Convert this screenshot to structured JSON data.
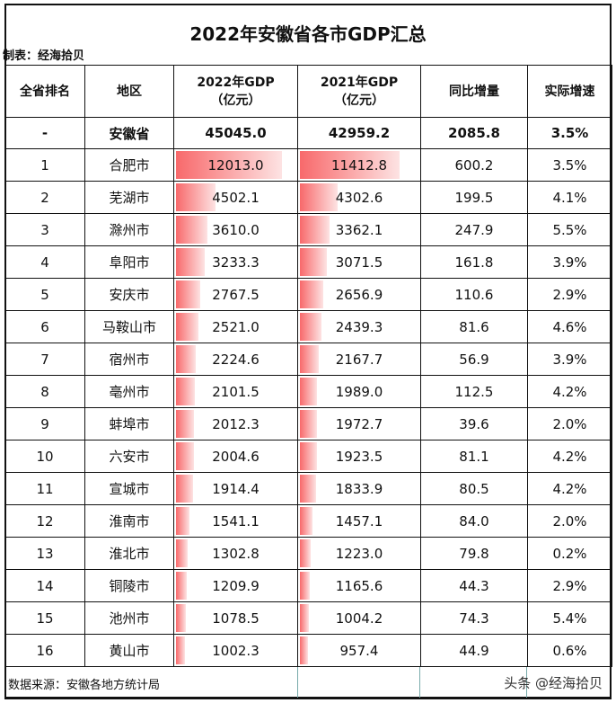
{
  "title": "2022年安徽省各市GDP汇总",
  "maker": "制表：经海拾贝",
  "headers": [
    "全省排名",
    "地区",
    "2022年GDP\n（亿元）",
    "2021年GDP\n（亿元）",
    "同比增量",
    "实际增速"
  ],
  "header_lines": {
    "gdp2022_a": "2022年GDP",
    "gdp2022_b": "（亿元）",
    "gdp2021_a": "2021年GDP",
    "gdp2021_b": "（亿元）"
  },
  "province": {
    "rank": "-",
    "name": "安徽省",
    "gdp2022": "45045.0",
    "gdp2021": "42959.2",
    "increase": "2085.8",
    "growth": "3.5%"
  },
  "rows": [
    {
      "rank": "1",
      "name": "合肥市",
      "gdp2022": "12013.0",
      "gdp2021": "11412.8",
      "increase": "600.2",
      "growth": "3.5%"
    },
    {
      "rank": "2",
      "name": "芜湖市",
      "gdp2022": "4502.1",
      "gdp2021": "4302.6",
      "increase": "199.5",
      "growth": "4.1%"
    },
    {
      "rank": "3",
      "name": "滁州市",
      "gdp2022": "3610.0",
      "gdp2021": "3362.1",
      "increase": "247.9",
      "growth": "5.5%"
    },
    {
      "rank": "4",
      "name": "阜阳市",
      "gdp2022": "3233.3",
      "gdp2021": "3071.5",
      "increase": "161.8",
      "growth": "3.9%"
    },
    {
      "rank": "5",
      "name": "安庆市",
      "gdp2022": "2767.5",
      "gdp2021": "2656.9",
      "increase": "110.6",
      "growth": "2.9%"
    },
    {
      "rank": "6",
      "name": "马鞍山市",
      "gdp2022": "2521.0",
      "gdp2021": "2439.3",
      "increase": "81.6",
      "growth": "4.6%"
    },
    {
      "rank": "7",
      "name": "宿州市",
      "gdp2022": "2224.6",
      "gdp2021": "2167.7",
      "increase": "56.9",
      "growth": "3.9%"
    },
    {
      "rank": "8",
      "name": "亳州市",
      "gdp2022": "2101.5",
      "gdp2021": "1989.0",
      "increase": "112.5",
      "growth": "4.2%"
    },
    {
      "rank": "9",
      "name": "蚌埠市",
      "gdp2022": "2012.3",
      "gdp2021": "1972.7",
      "increase": "39.6",
      "growth": "2.0%"
    },
    {
      "rank": "10",
      "name": "六安市",
      "gdp2022": "2004.6",
      "gdp2021": "1923.5",
      "increase": "81.1",
      "growth": "4.2%"
    },
    {
      "rank": "11",
      "name": "宣城市",
      "gdp2022": "1914.4",
      "gdp2021": "1833.9",
      "increase": "80.5",
      "growth": "4.2%"
    },
    {
      "rank": "12",
      "name": "淮南市",
      "gdp2022": "1541.1",
      "gdp2021": "1457.1",
      "increase": "84.0",
      "growth": "2.0%"
    },
    {
      "rank": "13",
      "name": "淮北市",
      "gdp2022": "1302.8",
      "gdp2021": "1223.0",
      "increase": "79.8",
      "growth": "0.2%"
    },
    {
      "rank": "14",
      "name": "铜陵市",
      "gdp2022": "1209.9",
      "gdp2021": "1165.6",
      "increase": "44.3",
      "growth": "2.9%"
    },
    {
      "rank": "15",
      "name": "池州市",
      "gdp2022": "1078.5",
      "gdp2021": "1004.2",
      "increase": "74.3",
      "growth": "5.4%"
    },
    {
      "rank": "16",
      "name": "黄山市",
      "gdp2022": "1002.3",
      "gdp2021": "957.4",
      "increase": "44.9",
      "growth": "0.6%"
    }
  ],
  "footer": {
    "source": "数据来源：安徽各地方统计局",
    "watermark": "头条 @经海拾贝"
  },
  "colors": {
    "bar": "#f8696b"
  }
}
